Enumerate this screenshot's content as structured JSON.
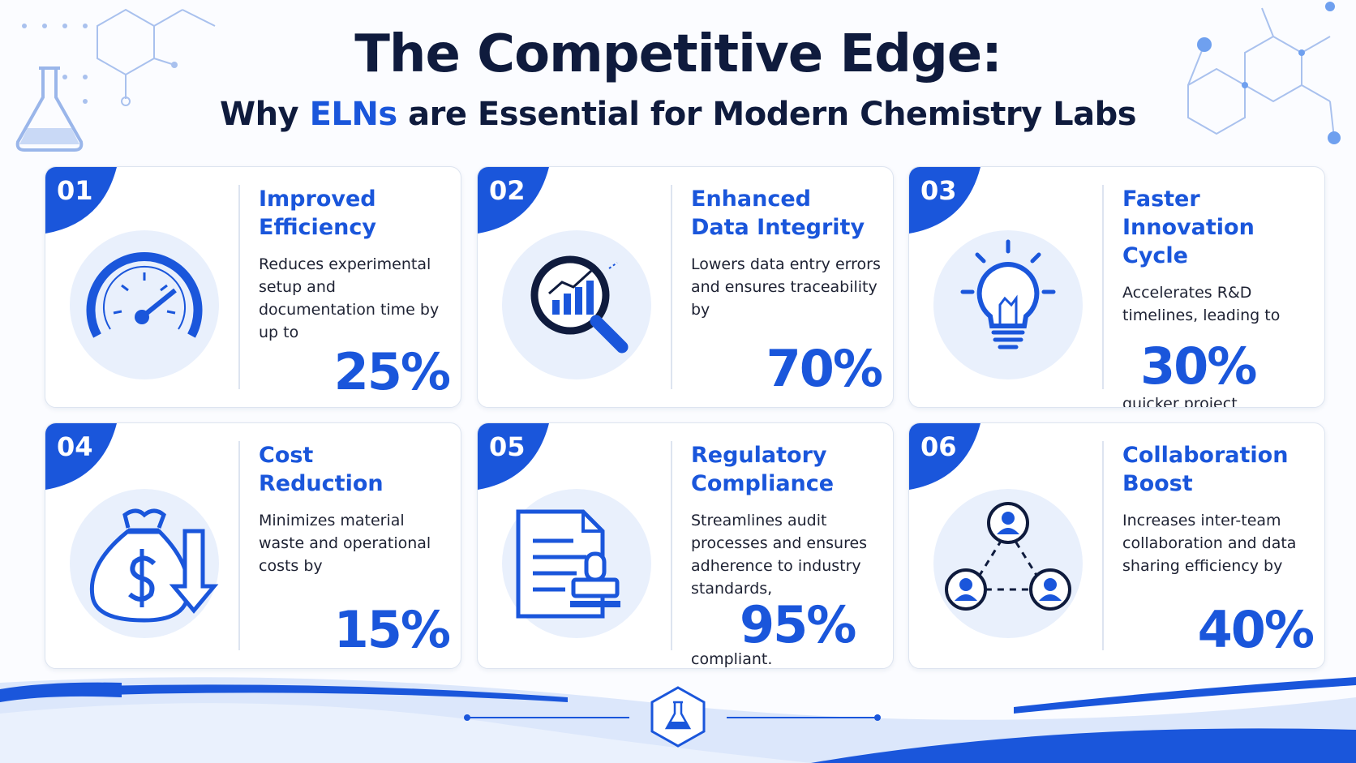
{
  "header": {
    "title": "The Competitive Edge:",
    "subtitle": {
      "before": "Why",
      "highlight": "ELNs",
      "after": "are Essential for Modern Chemistry Labs"
    }
  },
  "cards": [
    {
      "number": "01",
      "title": [
        "Improved",
        "Efficiency"
      ],
      "description": "Reduces experimental setup and documentation time by up to",
      "stat": "25%"
    },
    {
      "number": "02",
      "title": [
        "Enhanced",
        "Data Integrity"
      ],
      "description": "Lowers data entry errors and ensures traceability by",
      "stat": "70%"
    },
    {
      "number": "03",
      "title": [
        "Faster",
        "Innovation Cycle"
      ],
      "description": "Accelerates R&D timelines, leading to",
      "stat": "30%",
      "suffix": "quicker project completion."
    },
    {
      "number": "04",
      "title": [
        "Cost",
        "Reduction"
      ],
      "description": "Minimizes material waste and operational costs by",
      "stat": "15%"
    },
    {
      "number": "05",
      "title": [
        "Regulatory",
        "Compliance"
      ],
      "description": "Streamlines audit processes and ensures adherence to industry standards,",
      "stat": "95%",
      "suffix": "compliant."
    },
    {
      "number": "06",
      "title": [
        "Collaboration",
        "Boost"
      ],
      "description": "Increases inter-team collaboration and data sharing efficiency by",
      "stat": "40%"
    }
  ]
}
